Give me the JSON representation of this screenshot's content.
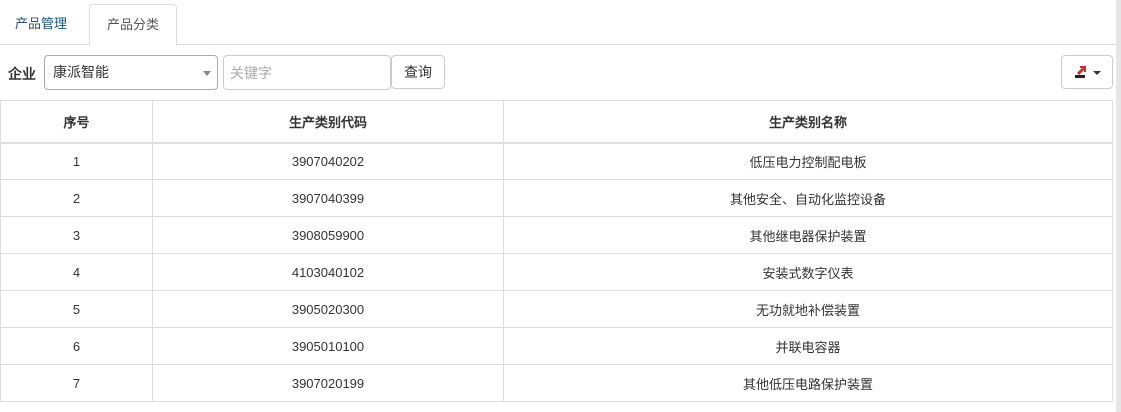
{
  "tabs": [
    {
      "label": "产品管理",
      "active": false
    },
    {
      "label": "产品分类",
      "active": true
    }
  ],
  "filter": {
    "company_label": "企业",
    "company_value": "康派智能",
    "keyword_placeholder": "关键字",
    "keyword_value": "",
    "query_label": "查询",
    "export_icon": "export-icon"
  },
  "table": {
    "headers": [
      "序号",
      "生产类别代码",
      "生产类别名称"
    ],
    "rows": [
      [
        "1",
        "3907040202",
        "低压电力控制配电板"
      ],
      [
        "2",
        "3907040399",
        "其他安全、自动化监控设备"
      ],
      [
        "3",
        "3908059900",
        "其他继电器保护装置"
      ],
      [
        "4",
        "4103040102",
        "安装式数字仪表"
      ],
      [
        "5",
        "3905020300",
        "无功就地补偿装置"
      ],
      [
        "6",
        "3905010100",
        "并联电容器"
      ],
      [
        "7",
        "3907020199",
        "其他低压电路保护装置"
      ]
    ]
  }
}
